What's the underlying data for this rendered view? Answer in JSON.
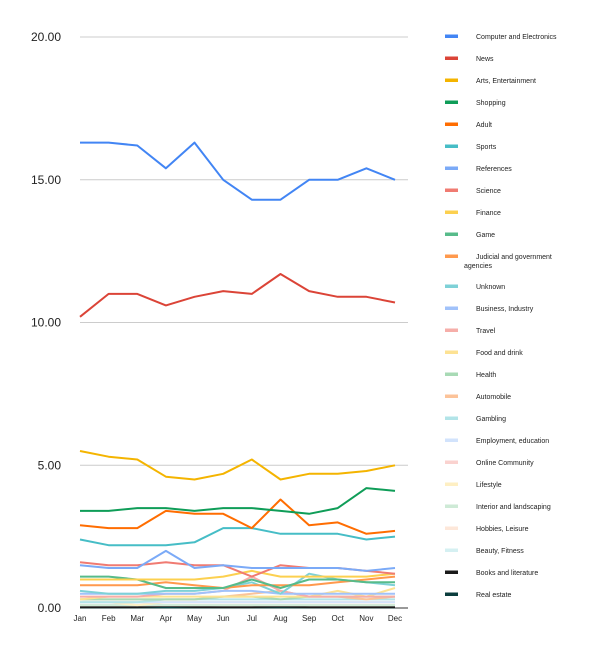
{
  "chart_data": {
    "type": "line",
    "title": "",
    "xlabel": "",
    "ylabel": "",
    "x": [
      "Jan",
      "Feb",
      "Mar",
      "Apr",
      "May",
      "Jun",
      "Jul",
      "Aug",
      "Sep",
      "Oct",
      "Nov",
      "Dec"
    ],
    "ylim": [
      0,
      20
    ],
    "yticks": [
      "0.00",
      "5.00",
      "10.00",
      "15.00",
      "20.00"
    ],
    "ytick_values": [
      0,
      5,
      10,
      15,
      20
    ],
    "grid": true,
    "legend_position": "right",
    "series": [
      {
        "name": "Computer and Electronics",
        "color": "#4285f4",
        "values": [
          16.3,
          16.3,
          16.2,
          15.4,
          16.3,
          15.0,
          14.3,
          14.3,
          15.0,
          15.0,
          15.4,
          15.0
        ]
      },
      {
        "name": "News",
        "color": "#db4437",
        "values": [
          10.2,
          11.0,
          11.0,
          10.6,
          10.9,
          11.1,
          11.0,
          11.7,
          11.1,
          10.9,
          10.9,
          10.7
        ]
      },
      {
        "name": "Arts, Entertainment",
        "color": "#f4b400",
        "values": [
          5.5,
          5.3,
          5.2,
          4.6,
          4.5,
          4.7,
          5.2,
          4.5,
          4.7,
          4.7,
          4.8,
          5.0
        ]
      },
      {
        "name": "Shopping",
        "color": "#0f9d58",
        "values": [
          3.4,
          3.4,
          3.5,
          3.5,
          3.4,
          3.5,
          3.5,
          3.4,
          3.3,
          3.5,
          4.2,
          4.1
        ]
      },
      {
        "name": "Adult",
        "color": "#ff6d01",
        "values": [
          2.9,
          2.8,
          2.8,
          3.4,
          3.3,
          3.3,
          2.8,
          3.8,
          2.9,
          3.0,
          2.6,
          2.7
        ]
      },
      {
        "name": "Sports",
        "color": "#46bdc6",
        "values": [
          2.4,
          2.2,
          2.2,
          2.2,
          2.3,
          2.8,
          2.8,
          2.6,
          2.6,
          2.6,
          2.4,
          2.5
        ]
      },
      {
        "name": "References",
        "color": "#7baaf7",
        "values": [
          1.5,
          1.4,
          1.4,
          2.0,
          1.4,
          1.5,
          1.4,
          1.4,
          1.4,
          1.4,
          1.3,
          1.4
        ]
      },
      {
        "name": "Science",
        "color": "#f07b72",
        "values": [
          1.6,
          1.5,
          1.5,
          1.6,
          1.5,
          1.5,
          1.1,
          1.5,
          1.4,
          1.4,
          1.3,
          1.2
        ]
      },
      {
        "name": "Finance",
        "color": "#fcd04f",
        "values": [
          1.0,
          1.0,
          1.0,
          1.0,
          1.0,
          1.1,
          1.3,
          1.1,
          1.1,
          1.1,
          1.1,
          1.2
        ]
      },
      {
        "name": "Game",
        "color": "#57bb8a",
        "values": [
          1.1,
          1.1,
          1.0,
          0.7,
          0.7,
          0.7,
          1.0,
          0.7,
          1.0,
          1.0,
          0.9,
          0.9
        ]
      },
      {
        "name": "Judicial and government agencies",
        "color": "#ff994d",
        "values": [
          0.8,
          0.8,
          0.8,
          0.9,
          0.8,
          0.7,
          0.8,
          0.8,
          0.8,
          0.9,
          1.0,
          1.1
        ]
      },
      {
        "name": "Unknown",
        "color": "#7ed1d7",
        "values": [
          0.6,
          0.5,
          0.5,
          0.6,
          0.6,
          0.7,
          0.9,
          0.5,
          1.2,
          1.0,
          0.9,
          0.8
        ]
      },
      {
        "name": "Business, Industry",
        "color": "#a1c2fa",
        "values": [
          0.5,
          0.5,
          0.5,
          0.5,
          0.5,
          0.6,
          0.6,
          0.5,
          0.5,
          0.5,
          0.5,
          0.5
        ]
      },
      {
        "name": "Travel",
        "color": "#f6aea9",
        "values": [
          0.4,
          0.4,
          0.4,
          0.5,
          0.5,
          0.6,
          1.1,
          0.6,
          0.4,
          0.4,
          0.4,
          0.4
        ]
      },
      {
        "name": "Food and drink",
        "color": "#fde293",
        "values": [
          0.3,
          0.4,
          0.4,
          0.4,
          0.4,
          0.4,
          0.4,
          0.4,
          0.4,
          0.6,
          0.4,
          0.7
        ]
      },
      {
        "name": "Health",
        "color": "#a8dab5",
        "values": [
          0.3,
          0.3,
          0.3,
          0.3,
          0.3,
          0.4,
          0.4,
          0.3,
          0.4,
          0.4,
          0.4,
          0.4
        ]
      },
      {
        "name": "Automobile",
        "color": "#fcc399",
        "values": [
          0.3,
          0.3,
          0.3,
          0.3,
          0.3,
          0.4,
          0.5,
          0.6,
          0.4,
          0.4,
          0.3,
          0.4
        ]
      },
      {
        "name": "Gambling",
        "color": "#b2e4e8",
        "values": [
          0.2,
          0.2,
          0.2,
          0.3,
          0.3,
          0.3,
          0.3,
          0.3,
          0.3,
          0.3,
          0.3,
          0.3
        ]
      },
      {
        "name": "Employment, education",
        "color": "#d2e3fc",
        "values": [
          0.2,
          0.2,
          0.2,
          0.2,
          0.2,
          0.2,
          0.2,
          0.2,
          0.2,
          0.2,
          0.2,
          0.2
        ]
      },
      {
        "name": "Online Community",
        "color": "#fad2cf",
        "values": [
          0.2,
          0.2,
          0.2,
          0.2,
          0.2,
          0.2,
          0.2,
          0.2,
          0.2,
          0.2,
          0.2,
          0.2
        ]
      },
      {
        "name": "Lifestyle",
        "color": "#feefc3",
        "values": [
          0.2,
          0.2,
          0.1,
          0.2,
          0.2,
          0.2,
          0.2,
          0.2,
          0.2,
          0.2,
          0.2,
          0.2
        ]
      },
      {
        "name": "Interior and landscaping",
        "color": "#ceead6",
        "values": [
          0.1,
          0.1,
          0.1,
          0.1,
          0.1,
          0.1,
          0.1,
          0.1,
          0.1,
          0.1,
          0.1,
          0.1
        ]
      },
      {
        "name": "Hobbies, Leisure",
        "color": "#fde7d9",
        "values": [
          0.1,
          0.1,
          0.1,
          0.1,
          0.1,
          0.1,
          0.1,
          0.1,
          0.1,
          0.1,
          0.1,
          0.1
        ]
      },
      {
        "name": "Beauty, Fitness",
        "color": "#d5f0f2",
        "values": [
          0.1,
          0.1,
          0.1,
          0.1,
          0.1,
          0.1,
          0.1,
          0.1,
          0.1,
          0.1,
          0.1,
          0.1
        ]
      },
      {
        "name": "Books and literature",
        "color": "#1a1a1a",
        "values": [
          0.03,
          0.03,
          0.03,
          0.08,
          0.04,
          0.03,
          0.03,
          0.06,
          0.03,
          0.03,
          0.03,
          0.03
        ]
      },
      {
        "name": "Real estate",
        "color": "#0b3d3d",
        "values": [
          0.02,
          0.02,
          0.02,
          0.02,
          0.02,
          0.02,
          0.02,
          0.02,
          0.02,
          0.02,
          0.02,
          0.02
        ]
      }
    ]
  }
}
